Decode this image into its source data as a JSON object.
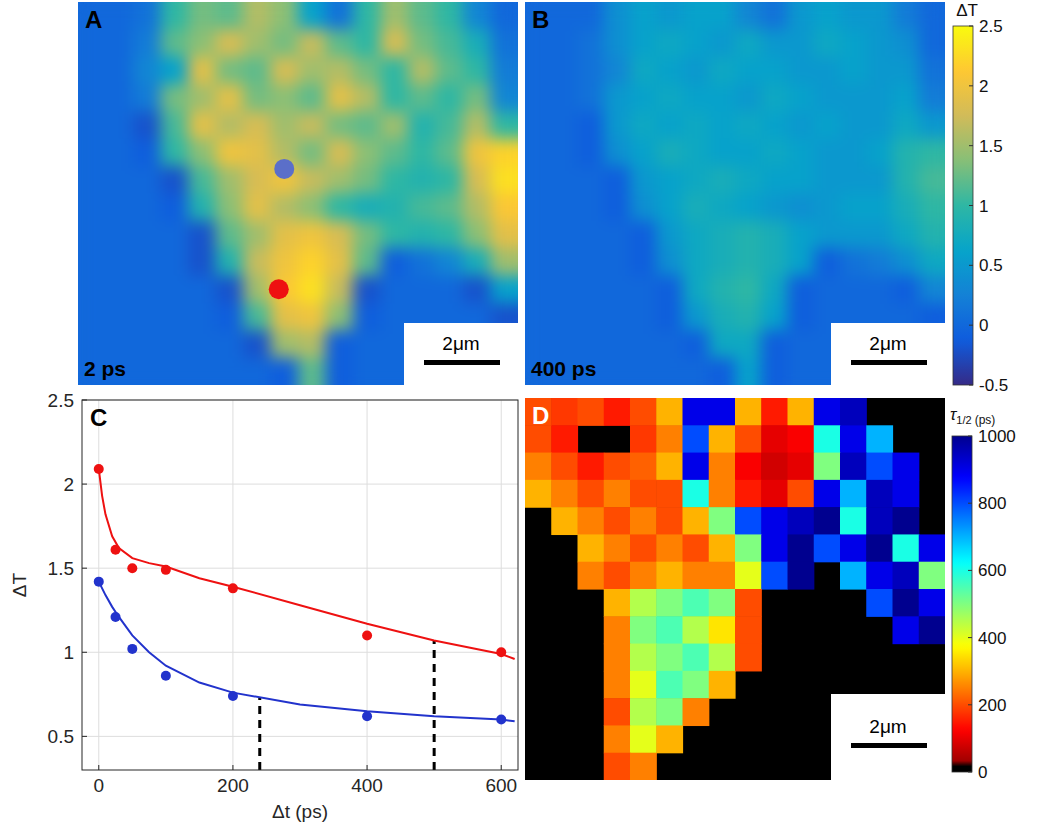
{
  "chart_data": [
    {
      "type": "heatmap",
      "panel": "A",
      "label": "2 ps",
      "scale_bar": "2μm",
      "color": "parula",
      "spots": [
        {
          "x": 6.8,
          "y": 10.0,
          "color": "#ee1111"
        },
        {
          "x": 7.0,
          "y": 5.6,
          "color": "#5b6fc9"
        }
      ],
      "cells": [
        [
          0,
          0,
          0.1,
          1.0,
          1.3,
          1.2,
          1.6,
          1.4,
          0.6,
          0.1,
          1.0,
          1.5,
          1.2,
          1.0,
          0.3,
          0
        ],
        [
          0,
          0,
          0.2,
          1.2,
          1.4,
          1.8,
          1.5,
          1.3,
          1.7,
          1.2,
          1.0,
          1.8,
          1.3,
          1.1,
          0.8,
          0.1
        ],
        [
          0,
          0,
          0.3,
          0.6,
          1.9,
          1.3,
          1.2,
          1.8,
          1.5,
          1.6,
          1.3,
          1.0,
          1.6,
          1.2,
          1.0,
          0.2
        ],
        [
          0,
          0,
          0.2,
          1.3,
          1.5,
          1.9,
          1.3,
          1.4,
          1.2,
          1.9,
          1.6,
          1.0,
          1.2,
          1.0,
          1.3,
          0.3
        ],
        [
          0,
          0,
          -0.2,
          1.1,
          1.9,
          1.6,
          1.8,
          1.5,
          1.7,
          1.3,
          1.2,
          1.5,
          0.9,
          1.1,
          1.6,
          1.0
        ],
        [
          0,
          0,
          -0.1,
          1.0,
          1.4,
          2.0,
          1.9,
          1.6,
          1.3,
          1.8,
          1.4,
          1.2,
          1.0,
          1.2,
          2.0,
          2.2
        ],
        [
          0,
          0,
          0,
          -0.2,
          1.1,
          1.5,
          1.8,
          2.0,
          1.7,
          1.5,
          1.3,
          1.0,
          0.9,
          1.0,
          1.8,
          2.3
        ],
        [
          0,
          0,
          0,
          -0.1,
          0.9,
          1.4,
          1.9,
          1.6,
          1.4,
          1.0,
          0.8,
          0.9,
          1.1,
          1.2,
          1.6,
          2.1
        ],
        [
          0,
          0,
          0,
          0,
          -0.2,
          1.2,
          1.5,
          1.9,
          2.0,
          1.8,
          1.3,
          1.0,
          0.9,
          1.0,
          1.4,
          1.9
        ],
        [
          0,
          0,
          0,
          0,
          -0.2,
          0.9,
          1.7,
          2.0,
          2.2,
          1.9,
          1.2,
          -0.1,
          0.1,
          0.3,
          0.8,
          1.5
        ],
        [
          0,
          0,
          0,
          0,
          0,
          -0.2,
          1.5,
          2.1,
          2.3,
          1.7,
          -0.2,
          0,
          0,
          0,
          -0.2,
          0.6
        ],
        [
          0,
          0,
          0,
          0,
          0,
          -0.1,
          1.1,
          1.9,
          2.0,
          1.4,
          -0.1,
          0,
          0,
          0,
          0,
          -0.2
        ],
        [
          0,
          0,
          0,
          0,
          0,
          0,
          -0.2,
          1.5,
          1.6,
          -0.1,
          0,
          0,
          0,
          0,
          0,
          0
        ],
        [
          0,
          0,
          0,
          0,
          0,
          0,
          0,
          -0.1,
          1.2,
          -0.1,
          0,
          0,
          0,
          0,
          0,
          0
        ]
      ]
    },
    {
      "type": "heatmap",
      "panel": "B",
      "label": "400 ps",
      "scale_bar": "2μm",
      "color": "parula",
      "cells": [
        [
          0,
          0,
          0,
          0.4,
          0.6,
          0.5,
          0.6,
          0.6,
          0.3,
          0.1,
          0.5,
          0.6,
          0.5,
          0.5,
          0.2,
          0
        ],
        [
          0,
          0,
          0.1,
          0.4,
          0.6,
          0.7,
          0.6,
          0.5,
          0.7,
          0.5,
          0.5,
          0.7,
          0.6,
          0.5,
          0.4,
          0
        ],
        [
          0,
          0,
          0.1,
          0.3,
          0.7,
          0.6,
          0.5,
          0.7,
          0.6,
          0.6,
          0.5,
          0.5,
          0.6,
          0.5,
          0.5,
          0.1
        ],
        [
          0,
          0,
          0.1,
          0.5,
          0.6,
          0.7,
          0.6,
          0.6,
          0.5,
          0.7,
          0.6,
          0.5,
          0.5,
          0.5,
          0.6,
          0.2
        ],
        [
          0,
          0,
          -0.1,
          0.5,
          0.7,
          0.6,
          0.7,
          0.6,
          0.7,
          0.6,
          0.5,
          0.6,
          0.5,
          0.5,
          0.7,
          0.5
        ],
        [
          0,
          0,
          -0.1,
          0.4,
          0.6,
          0.8,
          0.7,
          0.6,
          0.6,
          0.7,
          0.6,
          0.5,
          0.5,
          0.6,
          0.9,
          1.0
        ],
        [
          0,
          0,
          0,
          -0.1,
          0.5,
          0.6,
          0.7,
          0.8,
          0.7,
          0.6,
          0.6,
          0.5,
          0.5,
          0.5,
          0.9,
          1.1
        ],
        [
          0,
          0,
          0,
          -0.1,
          0.4,
          0.6,
          0.8,
          0.7,
          0.6,
          0.5,
          0.4,
          0.5,
          0.6,
          0.6,
          0.8,
          1.0
        ],
        [
          0,
          0,
          0,
          0,
          -0.1,
          0.5,
          0.7,
          0.8,
          0.9,
          0.8,
          0.6,
          0.5,
          0.5,
          0.5,
          0.7,
          0.9
        ],
        [
          0,
          0,
          0,
          0,
          -0.1,
          0.4,
          0.7,
          0.8,
          0.9,
          0.8,
          0.6,
          -0.1,
          0.1,
          0.2,
          0.4,
          0.7
        ],
        [
          0,
          0,
          0,
          0,
          0,
          -0.1,
          0.7,
          0.9,
          1.0,
          0.7,
          -0.1,
          0,
          0,
          0,
          -0.1,
          0.3
        ],
        [
          0,
          0,
          0,
          0,
          0,
          -0.1,
          0.5,
          0.8,
          0.9,
          0.6,
          -0.1,
          0,
          0,
          0,
          0,
          -0.1
        ],
        [
          0,
          0,
          0,
          0,
          0,
          0,
          -0.1,
          0.7,
          0.7,
          -0.1,
          0,
          0,
          0,
          0,
          0,
          0
        ],
        [
          0,
          0,
          0,
          0,
          0,
          0,
          0,
          -0.1,
          0.6,
          -0.1,
          0,
          0,
          0,
          0,
          0,
          0
        ]
      ]
    },
    {
      "type": "colorbar",
      "label": "ΔT",
      "color": "parula",
      "range": [
        -0.5,
        2.5
      ],
      "ticks": [
        2.5,
        2,
        1.5,
        1,
        0.5,
        0,
        -0.5
      ]
    },
    {
      "type": "scatter",
      "panel": "C",
      "x_label": "Δt (ps)",
      "y_label": "ΔT",
      "xlim": [
        -25,
        625
      ],
      "ylim": [
        0.3,
        2.5
      ],
      "xticks": [
        0,
        200,
        400,
        600
      ],
      "yticks": [
        0.5,
        1,
        1.5,
        2,
        2.5
      ],
      "grid": true,
      "series": [
        {
          "color": "#ee1111",
          "marker": "circle",
          "x": [
            0,
            25,
            50,
            100,
            200,
            400,
            600
          ],
          "values": [
            2.09,
            1.61,
            1.5,
            1.49,
            1.38,
            1.1,
            1.0
          ]
        },
        {
          "color": "#2233cc",
          "marker": "circle",
          "x": [
            0,
            25,
            50,
            100,
            200,
            400,
            600
          ],
          "values": [
            1.42,
            1.21,
            1.02,
            0.86,
            0.74,
            0.62,
            0.6
          ]
        },
        {
          "type": "line",
          "color": "#ee1111",
          "line_style": "solid",
          "x": [
            0,
            5,
            10,
            20,
            30,
            50,
            75,
            100,
            150,
            200,
            300,
            400,
            500,
            600,
            620
          ],
          "values": [
            2.09,
            1.93,
            1.82,
            1.69,
            1.62,
            1.56,
            1.53,
            1.51,
            1.44,
            1.39,
            1.28,
            1.17,
            1.07,
            0.99,
            0.96
          ]
        },
        {
          "type": "line",
          "color": "#2233cc",
          "line_style": "solid",
          "x": [
            0,
            5,
            10,
            20,
            30,
            50,
            75,
            100,
            150,
            200,
            300,
            400,
            500,
            600,
            620
          ],
          "values": [
            1.42,
            1.38,
            1.34,
            1.27,
            1.21,
            1.1,
            1.0,
            0.92,
            0.82,
            0.76,
            0.69,
            0.65,
            0.62,
            0.6,
            0.59
          ]
        }
      ],
      "half_life_markers": [
        {
          "x": 240,
          "y": 0.73
        },
        {
          "x": 500,
          "y": 1.07
        }
      ]
    },
    {
      "type": "heatmap",
      "panel": "D",
      "scale_bar": "2μm",
      "color": "jet",
      "cells": [
        [
          200,
          180,
          200,
          150,
          200,
          300,
          900,
          900,
          300,
          150,
          300,
          900,
          950,
          null,
          null,
          null
        ],
        [
          200,
          150,
          null,
          null,
          180,
          250,
          800,
          300,
          200,
          100,
          120,
          600,
          900,
          700,
          null,
          null
        ],
        [
          250,
          200,
          150,
          200,
          220,
          300,
          900,
          250,
          120,
          80,
          100,
          500,
          950,
          800,
          900,
          null
        ],
        [
          300,
          250,
          200,
          250,
          200,
          200,
          600,
          250,
          150,
          100,
          200,
          900,
          700,
          950,
          900,
          null
        ],
        [
          null,
          300,
          250,
          200,
          250,
          200,
          300,
          500,
          800,
          900,
          950,
          1000,
          600,
          950,
          1000,
          null
        ],
        [
          null,
          null,
          300,
          250,
          200,
          250,
          200,
          300,
          500,
          900,
          1000,
          800,
          900,
          1000,
          600,
          900
        ],
        [
          null,
          null,
          250,
          200,
          250,
          300,
          250,
          250,
          400,
          800,
          1000,
          null,
          700,
          900,
          950,
          500
        ],
        [
          null,
          null,
          null,
          300,
          450,
          500,
          550,
          500,
          200,
          null,
          null,
          null,
          null,
          800,
          1000,
          900
        ],
        [
          null,
          null,
          null,
          250,
          500,
          550,
          450,
          350,
          200,
          null,
          null,
          null,
          null,
          null,
          900,
          1000
        ],
        [
          null,
          null,
          null,
          250,
          450,
          500,
          550,
          450,
          200,
          null,
          null,
          null,
          null,
          null,
          null,
          null
        ],
        [
          null,
          null,
          null,
          250,
          400,
          550,
          500,
          300,
          null,
          null,
          null,
          null,
          null,
          null,
          null,
          null
        ],
        [
          null,
          null,
          null,
          200,
          450,
          500,
          250,
          null,
          null,
          null,
          null,
          null,
          null,
          null,
          null,
          null
        ],
        [
          null,
          null,
          null,
          250,
          400,
          300,
          null,
          null,
          null,
          null,
          null,
          null,
          null,
          null,
          null,
          null
        ],
        [
          null,
          null,
          null,
          200,
          250,
          null,
          null,
          null,
          null,
          null,
          null,
          null,
          null,
          null,
          null,
          null
        ]
      ]
    },
    {
      "type": "colorbar",
      "label": "τ",
      "label_subscript": "1/2",
      "unit": "(ps)",
      "color": "jet",
      "range": [
        0,
        1000
      ],
      "ticks": [
        1000,
        800,
        600,
        400,
        200,
        0
      ]
    }
  ]
}
